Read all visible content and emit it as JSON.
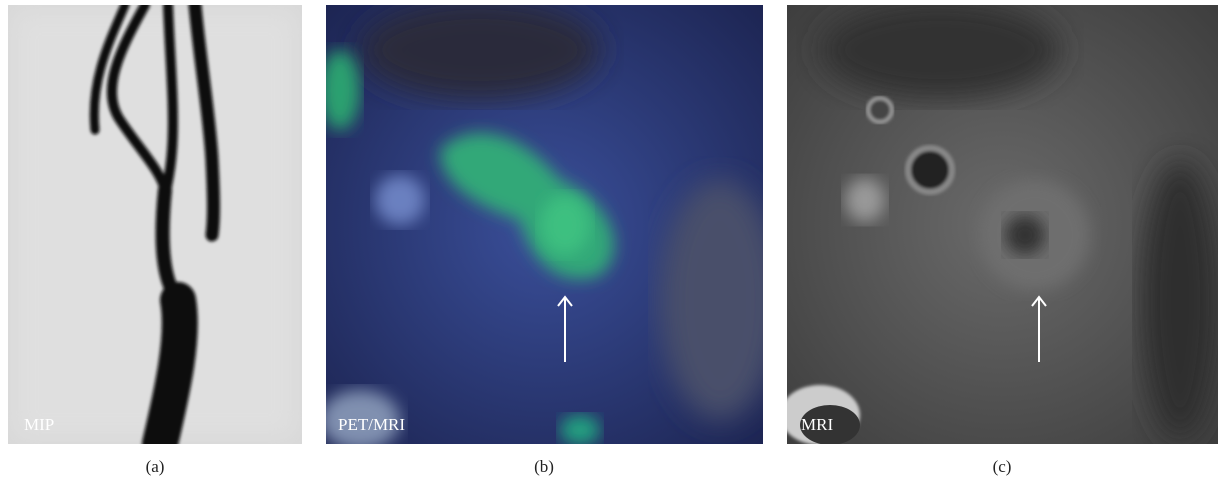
{
  "panels": [
    {
      "label": "MIP",
      "caption": "(a)"
    },
    {
      "label": "PET/MRI",
      "caption": "(b)"
    },
    {
      "label": "MRI",
      "caption": "(c)"
    }
  ]
}
